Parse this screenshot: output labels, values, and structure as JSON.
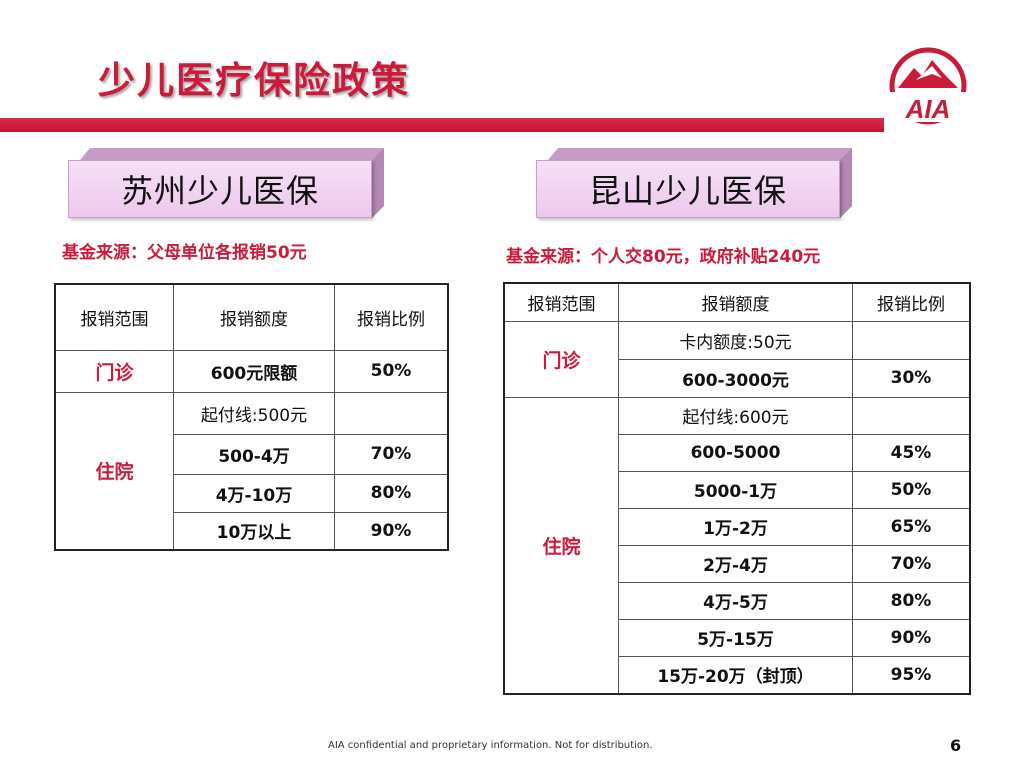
{
  "title": "少儿医疗保险政策",
  "colors": {
    "accent": "#cc1a3a",
    "banner": "#f0d0f0"
  },
  "logo": {
    "icon": "aia-logo-icon",
    "text": "AIA"
  },
  "left": {
    "banner": "苏州少儿医保",
    "fund": "基金来源：父母单位各报销50元",
    "headers": [
      "报销范围",
      "报销额度",
      "报销比例"
    ],
    "outpatient": {
      "label": "门诊",
      "amount": "600元限额",
      "ratio": "50%"
    },
    "inpatient": {
      "label": "住院",
      "rows": [
        {
          "amount": "起付线:500元",
          "ratio": ""
        },
        {
          "amount": "500-4万",
          "ratio": "70%"
        },
        {
          "amount": "4万-10万",
          "ratio": "80%"
        },
        {
          "amount": "10万以上",
          "ratio": "90%"
        }
      ]
    }
  },
  "right": {
    "banner": "昆山少儿医保",
    "fund": "基金来源：个人交80元，政府补贴240元",
    "headers": [
      "报销范围",
      "报销额度",
      "报销比例"
    ],
    "outpatient": {
      "label": "门诊",
      "rows": [
        {
          "amount": "卡内额度:50元",
          "ratio": ""
        },
        {
          "amount": "600-3000元",
          "ratio": "30%"
        }
      ]
    },
    "inpatient": {
      "label": "住院",
      "rows": [
        {
          "amount": "起付线:600元",
          "ratio": ""
        },
        {
          "amount": "600-5000",
          "ratio": "45%"
        },
        {
          "amount": "5000-1万",
          "ratio": "50%"
        },
        {
          "amount": "1万-2万",
          "ratio": "65%"
        },
        {
          "amount": "2万-4万",
          "ratio": "70%"
        },
        {
          "amount": "4万-5万",
          "ratio": "80%"
        },
        {
          "amount": "5万-15万",
          "ratio": "90%"
        },
        {
          "amount": "15万-20万（封顶）",
          "ratio": "95%"
        }
      ]
    }
  },
  "footer": "AIA confidential and proprietary information. Not for distribution.",
  "page_number": "6"
}
